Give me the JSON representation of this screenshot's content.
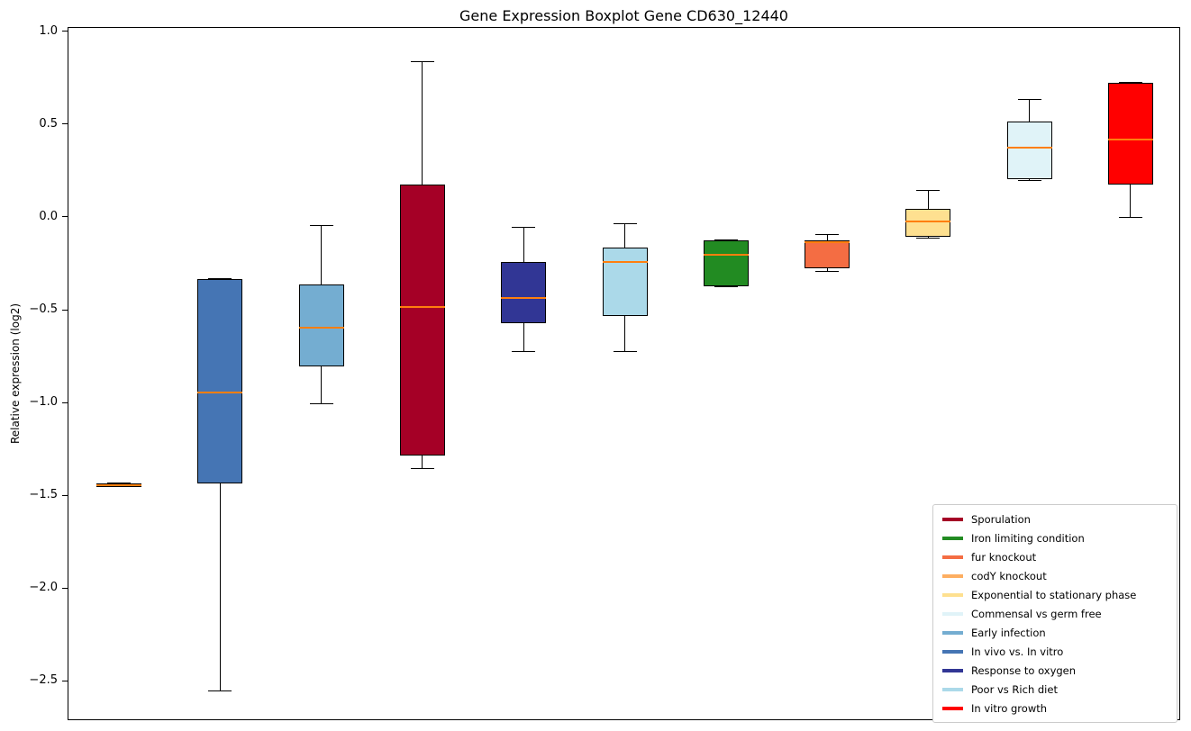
{
  "chart_data": {
    "type": "boxplot",
    "title": "Gene Expression Boxplot Gene CD630_12440",
    "ylabel": "Relative expression (log2)",
    "ylim": [
      -2.713,
      1.024
    ],
    "grid": false,
    "legend_position": "lower right",
    "median_color": "#FF7F0E",
    "box_edge_color": "#000000",
    "yticks": [
      {
        "value": 1.0,
        "label": "1.0"
      },
      {
        "value": 0.5,
        "label": "0.5"
      },
      {
        "value": 0.0,
        "label": "0.0"
      },
      {
        "value": -0.5,
        "label": "−0.5"
      },
      {
        "value": -1.0,
        "label": "−1.0"
      },
      {
        "value": -1.5,
        "label": "−1.5"
      },
      {
        "value": -2.0,
        "label": "−2.0"
      },
      {
        "value": -2.5,
        "label": "−2.5"
      }
    ],
    "boxes": [
      {
        "label": "codY knockout",
        "color": "#FDAE61",
        "whislo": -1.45,
        "q1": -1.45,
        "med": -1.44,
        "q3": -1.43,
        "whishi": -1.43
      },
      {
        "label": "In vivo vs. In vitro",
        "color": "#4575B4",
        "whislo": -2.55,
        "q1": -1.43,
        "med": -0.94,
        "q3": -0.33,
        "whishi": -0.33
      },
      {
        "label": "Early infection",
        "color": "#74ADD1",
        "whislo": -1.0,
        "q1": -0.8,
        "med": -0.59,
        "q3": -0.36,
        "whishi": -0.04
      },
      {
        "label": "Sporulation",
        "color": "#A50026",
        "whislo": -1.35,
        "q1": -1.28,
        "med": -0.48,
        "q3": 0.18,
        "whishi": 0.84
      },
      {
        "label": "Response to oxygen",
        "color": "#313695",
        "whislo": -0.72,
        "q1": -0.57,
        "med": -0.43,
        "q3": -0.24,
        "whishi": -0.05
      },
      {
        "label": "Poor vs Rich diet",
        "color": "#ABD9E9",
        "whislo": -0.72,
        "q1": -0.53,
        "med": -0.24,
        "q3": -0.16,
        "whishi": -0.03
      },
      {
        "label": "Iron limiting condition",
        "color": "#228B22",
        "whislo": -0.37,
        "q1": -0.37,
        "med": -0.2,
        "q3": -0.12,
        "whishi": -0.12
      },
      {
        "label": "fur knockout",
        "color": "#F46D43",
        "whislo": -0.29,
        "q1": -0.27,
        "med": -0.13,
        "q3": -0.12,
        "whishi": -0.09
      },
      {
        "label": "Exponential to stationary phase",
        "color": "#FEE090",
        "whislo": -0.11,
        "q1": -0.1,
        "med": -0.02,
        "q3": 0.05,
        "whishi": 0.15
      },
      {
        "label": "Commensal vs germ free",
        "color": "#E0F3F8",
        "whislo": 0.2,
        "q1": 0.21,
        "med": 0.38,
        "q3": 0.52,
        "whishi": 0.64
      },
      {
        "label": "In vitro growth",
        "color": "#FF0000",
        "whislo": 0.0,
        "q1": 0.18,
        "med": 0.42,
        "q3": 0.73,
        "whishi": 0.73
      }
    ],
    "legend": {
      "items": [
        {
          "label": "Sporulation",
          "color": "#A50026"
        },
        {
          "label": "Iron limiting condition",
          "color": "#228B22"
        },
        {
          "label": "fur knockout",
          "color": "#F46D43"
        },
        {
          "label": "codY knockout",
          "color": "#FDAE61"
        },
        {
          "label": "Exponential to stationary phase",
          "color": "#FEE090"
        },
        {
          "label": "Commensal vs germ free",
          "color": "#E0F3F8"
        },
        {
          "label": "Early infection",
          "color": "#74ADD1"
        },
        {
          "label": "In vivo vs. In vitro",
          "color": "#4575B4"
        },
        {
          "label": "Response to oxygen",
          "color": "#313695"
        },
        {
          "label": "Poor vs Rich diet",
          "color": "#ABD9E9"
        },
        {
          "label": "In vitro growth",
          "color": "#FF0000"
        }
      ]
    }
  }
}
